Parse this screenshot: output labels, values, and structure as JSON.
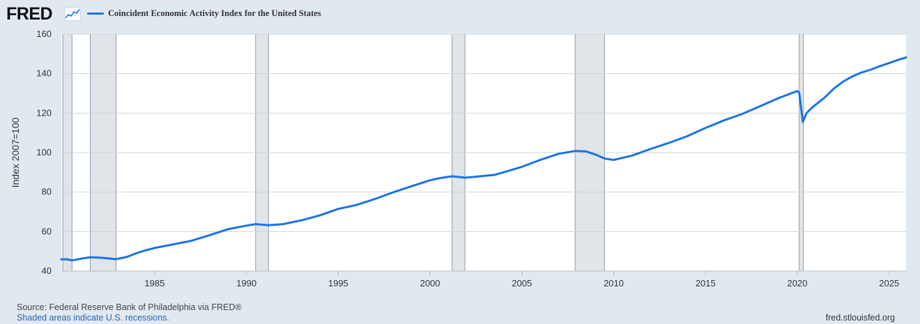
{
  "header": {
    "logo_text": "FRED",
    "logo_icon": "trend-graph-icon",
    "series_name": "Coincident Economic Activity Index for the United States",
    "series_color": "#1a73e8"
  },
  "footer": {
    "source": "Source: Federal Reserve Bank of Philadelphia via FRED®",
    "recession_note": "Shaded areas indicate U.S. recessions.",
    "site": "fred.stlouisfed.org"
  },
  "chart_data": {
    "type": "line",
    "title": "Coincident Economic Activity Index for the United States",
    "ylabel": "Index 2007=100",
    "xlabel": "",
    "xlim": [
      1979.92,
      2025.92
    ],
    "ylim": [
      40,
      160
    ],
    "x_ticks": [
      1985,
      1990,
      1995,
      2000,
      2005,
      2010,
      2015,
      2020,
      2025
    ],
    "y_ticks": [
      40,
      60,
      80,
      100,
      120,
      140,
      160
    ],
    "grid": true,
    "recessions": [
      [
        1980.0,
        1980.5
      ],
      [
        1981.5,
        1982.9
      ],
      [
        1990.5,
        1991.2
      ],
      [
        2001.2,
        2001.9
      ],
      [
        2007.9,
        2009.5
      ],
      [
        2020.1,
        2020.33
      ]
    ],
    "series": [
      {
        "name": "Coincident Economic Activity Index for the United States",
        "color": "#1a73e8",
        "x": [
          1979.92,
          1980.2,
          1980.5,
          1981.0,
          1981.5,
          1982.0,
          1982.5,
          1982.9,
          1983.5,
          1984.0,
          1984.5,
          1985.0,
          1986.0,
          1987.0,
          1988.0,
          1989.0,
          1990.0,
          1990.5,
          1991.2,
          1992.0,
          1993.0,
          1994.0,
          1995.0,
          1996.0,
          1997.0,
          1998.0,
          1999.0,
          2000.0,
          2000.5,
          2001.2,
          2001.9,
          2002.5,
          2003.0,
          2003.5,
          2004.0,
          2005.0,
          2006.0,
          2007.0,
          2007.9,
          2008.5,
          2009.0,
          2009.5,
          2010.0,
          2011.0,
          2012.0,
          2013.0,
          2014.0,
          2015.0,
          2016.0,
          2017.0,
          2018.0,
          2019.0,
          2020.0,
          2020.1,
          2020.3,
          2020.5,
          2020.8,
          2021.0,
          2021.5,
          2022.0,
          2022.5,
          2023.0,
          2023.5,
          2024.0,
          2024.5,
          2025.0,
          2025.5,
          2025.92
        ],
        "values": [
          45.9,
          46.0,
          45.4,
          46.3,
          47.0,
          46.8,
          46.4,
          46.0,
          47.2,
          49.0,
          50.5,
          51.7,
          53.5,
          55.3,
          58.2,
          61.2,
          63.0,
          63.8,
          63.2,
          63.8,
          65.7,
          68.2,
          71.5,
          73.5,
          76.5,
          79.9,
          83.0,
          86.0,
          87.0,
          88.0,
          87.3,
          87.8,
          88.3,
          88.7,
          90.0,
          92.8,
          96.3,
          99.4,
          100.8,
          100.6,
          99.0,
          97.0,
          96.3,
          98.5,
          101.8,
          104.9,
          108.3,
          112.5,
          116.3,
          119.6,
          123.6,
          127.7,
          131.2,
          130.3,
          115.5,
          120.0,
          122.8,
          124.3,
          128.0,
          132.5,
          136.0,
          138.6,
          140.6,
          142.0,
          143.8,
          145.4,
          147.0,
          148.2
        ]
      }
    ]
  }
}
